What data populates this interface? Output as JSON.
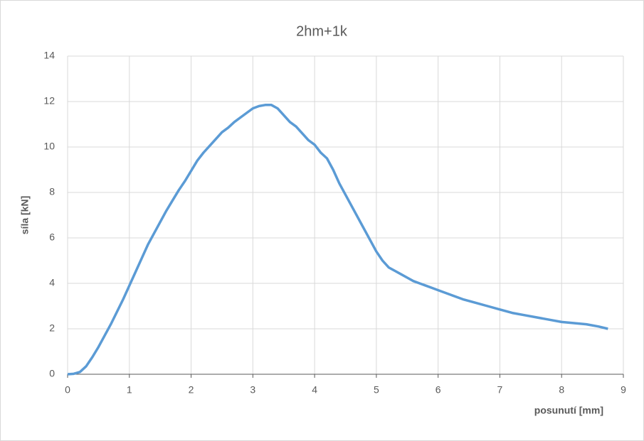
{
  "chart_data": {
    "type": "line",
    "title": "2hm+1k",
    "x_label": "posunutí [mm]",
    "y_label": "síla [kN]",
    "x": [
      0,
      0.1,
      0.2,
      0.3,
      0.4,
      0.5,
      0.6,
      0.7,
      0.8,
      0.9,
      1.0,
      1.1,
      1.2,
      1.3,
      1.4,
      1.5,
      1.6,
      1.7,
      1.8,
      1.9,
      2.0,
      2.1,
      2.2,
      2.3,
      2.4,
      2.5,
      2.6,
      2.7,
      2.8,
      2.9,
      3.0,
      3.1,
      3.2,
      3.3,
      3.4,
      3.5,
      3.6,
      3.7,
      3.8,
      3.9,
      4.0,
      4.1,
      4.2,
      4.3,
      4.4,
      4.5,
      4.6,
      4.7,
      4.8,
      4.9,
      5.0,
      5.1,
      5.2,
      5.3,
      5.4,
      5.5,
      5.6,
      5.7,
      5.8,
      5.9,
      6.0,
      6.2,
      6.4,
      6.6,
      6.8,
      7.0,
      7.2,
      7.4,
      7.6,
      7.8,
      8.0,
      8.2,
      8.4,
      8.6,
      8.75
    ],
    "series": [
      {
        "name": "2hm+1k",
        "color": "#5b9bd5",
        "values": [
          0,
          0.02,
          0.1,
          0.35,
          0.75,
          1.2,
          1.7,
          2.2,
          2.75,
          3.3,
          3.9,
          4.5,
          5.1,
          5.7,
          6.2,
          6.7,
          7.2,
          7.65,
          8.1,
          8.5,
          8.95,
          9.4,
          9.75,
          10.05,
          10.35,
          10.65,
          10.85,
          11.1,
          11.3,
          11.5,
          11.7,
          11.8,
          11.85,
          11.85,
          11.7,
          11.4,
          11.1,
          10.9,
          10.6,
          10.3,
          10.1,
          9.75,
          9.5,
          9.0,
          8.4,
          7.9,
          7.4,
          6.9,
          6.4,
          5.9,
          5.4,
          5.0,
          4.7,
          4.55,
          4.4,
          4.25,
          4.1,
          4.0,
          3.9,
          3.8,
          3.7,
          3.5,
          3.3,
          3.15,
          3.0,
          2.85,
          2.7,
          2.6,
          2.5,
          2.4,
          2.3,
          2.25,
          2.2,
          2.1,
          2.0
        ]
      }
    ],
    "xlim": [
      0,
      9
    ],
    "xticks": [
      0,
      1,
      2,
      3,
      4,
      5,
      6,
      7,
      8,
      9
    ],
    "ylim": [
      0,
      14
    ],
    "yticks": [
      0,
      2,
      4,
      6,
      8,
      10,
      12,
      14
    ],
    "grid": true
  }
}
